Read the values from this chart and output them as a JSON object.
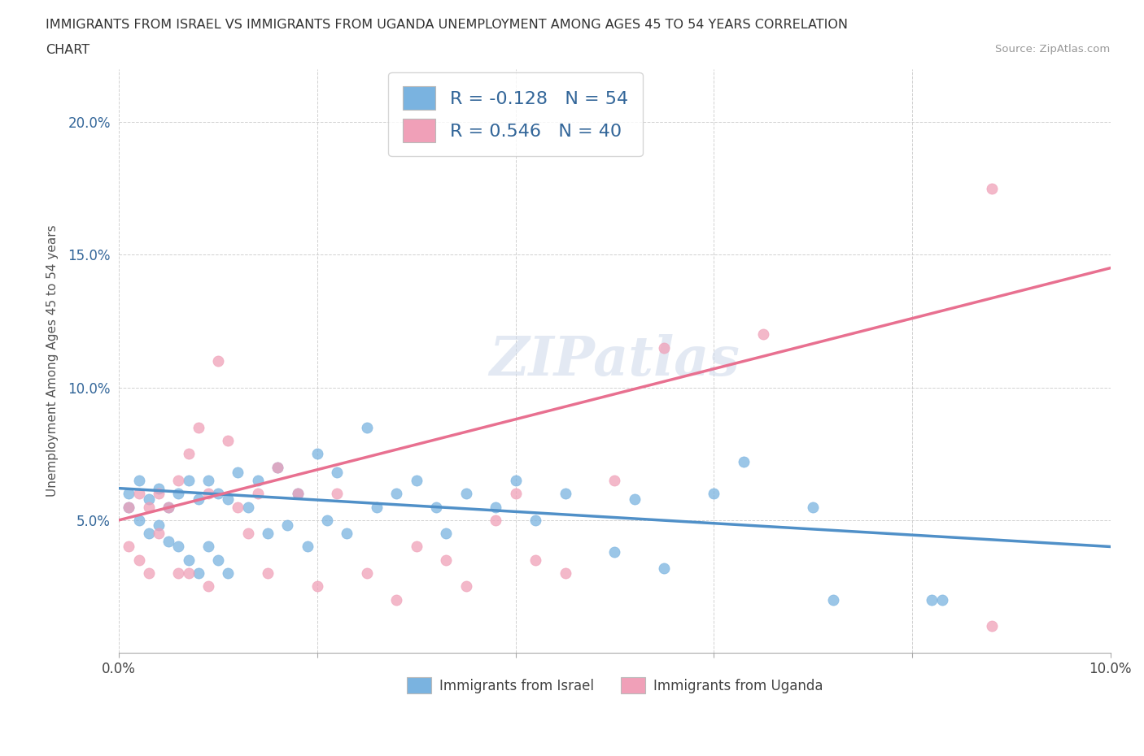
{
  "title_line1": "IMMIGRANTS FROM ISRAEL VS IMMIGRANTS FROM UGANDA UNEMPLOYMENT AMONG AGES 45 TO 54 YEARS CORRELATION",
  "title_line2": "CHART",
  "source": "Source: ZipAtlas.com",
  "ylabel": "Unemployment Among Ages 45 to 54 years",
  "xlim": [
    0.0,
    0.1
  ],
  "ylim": [
    0.0,
    0.22
  ],
  "xticks": [
    0.0,
    0.02,
    0.04,
    0.06,
    0.08,
    0.1
  ],
  "xticklabels": [
    "0.0%",
    "",
    "",
    "",
    "",
    "10.0%"
  ],
  "yticks": [
    0.0,
    0.05,
    0.1,
    0.15,
    0.2
  ],
  "yticklabels": [
    "",
    "5.0%",
    "10.0%",
    "15.0%",
    "20.0%"
  ],
  "israel_color": "#7ab3e0",
  "uganda_color": "#f0a0b8",
  "israel_line_color": "#5090c8",
  "uganda_line_color": "#e87090",
  "israel_R": -0.128,
  "israel_N": 54,
  "uganda_R": 0.546,
  "uganda_N": 40,
  "watermark": "ZIPatlas",
  "legend_israel": "Immigrants from Israel",
  "legend_uganda": "Immigrants from Uganda",
  "israel_x": [
    0.001,
    0.001,
    0.002,
    0.002,
    0.003,
    0.003,
    0.004,
    0.004,
    0.005,
    0.005,
    0.006,
    0.006,
    0.007,
    0.007,
    0.008,
    0.008,
    0.009,
    0.009,
    0.01,
    0.01,
    0.011,
    0.011,
    0.012,
    0.013,
    0.014,
    0.015,
    0.016,
    0.017,
    0.018,
    0.019,
    0.02,
    0.021,
    0.022,
    0.023,
    0.025,
    0.026,
    0.028,
    0.03,
    0.032,
    0.033,
    0.035,
    0.038,
    0.04,
    0.042,
    0.045,
    0.05,
    0.052,
    0.055,
    0.06,
    0.063,
    0.07,
    0.072,
    0.082,
    0.083
  ],
  "israel_y": [
    0.06,
    0.055,
    0.065,
    0.05,
    0.058,
    0.045,
    0.062,
    0.048,
    0.055,
    0.042,
    0.06,
    0.04,
    0.065,
    0.035,
    0.058,
    0.03,
    0.065,
    0.04,
    0.06,
    0.035,
    0.058,
    0.03,
    0.068,
    0.055,
    0.065,
    0.045,
    0.07,
    0.048,
    0.06,
    0.04,
    0.075,
    0.05,
    0.068,
    0.045,
    0.085,
    0.055,
    0.06,
    0.065,
    0.055,
    0.045,
    0.06,
    0.055,
    0.065,
    0.05,
    0.06,
    0.038,
    0.058,
    0.032,
    0.06,
    0.072,
    0.055,
    0.02,
    0.02,
    0.02
  ],
  "uganda_x": [
    0.001,
    0.001,
    0.002,
    0.002,
    0.003,
    0.003,
    0.004,
    0.004,
    0.005,
    0.006,
    0.006,
    0.007,
    0.007,
    0.008,
    0.009,
    0.009,
    0.01,
    0.011,
    0.012,
    0.013,
    0.014,
    0.015,
    0.016,
    0.018,
    0.02,
    0.022,
    0.025,
    0.028,
    0.03,
    0.033,
    0.035,
    0.038,
    0.04,
    0.042,
    0.045,
    0.05,
    0.055,
    0.065,
    0.088,
    0.088
  ],
  "uganda_y": [
    0.055,
    0.04,
    0.06,
    0.035,
    0.055,
    0.03,
    0.06,
    0.045,
    0.055,
    0.065,
    0.03,
    0.075,
    0.03,
    0.085,
    0.06,
    0.025,
    0.11,
    0.08,
    0.055,
    0.045,
    0.06,
    0.03,
    0.07,
    0.06,
    0.025,
    0.06,
    0.03,
    0.02,
    0.04,
    0.035,
    0.025,
    0.05,
    0.06,
    0.035,
    0.03,
    0.065,
    0.115,
    0.12,
    0.175,
    0.01
  ]
}
